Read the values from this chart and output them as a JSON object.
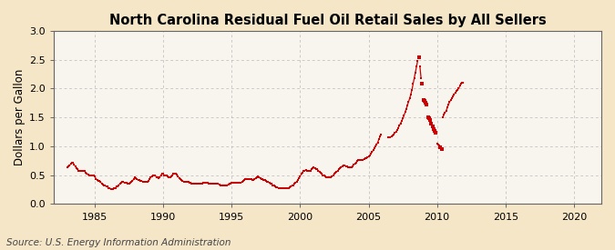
{
  "title": "North Carolina Residual Fuel Oil Retail Sales by All Sellers",
  "ylabel": "Dollars per Gallon",
  "source": "Source: U.S. Energy Information Administration",
  "xlim": [
    1982,
    2022
  ],
  "ylim": [
    0.0,
    3.0
  ],
  "yticks": [
    0.0,
    0.5,
    1.0,
    1.5,
    2.0,
    2.5,
    3.0
  ],
  "xticks": [
    1985,
    1990,
    1995,
    2000,
    2005,
    2010,
    2015,
    2020
  ],
  "line_color": "#cc0000",
  "background_color": "#f5e6c8",
  "plot_bg_color": "#f8f4ee",
  "grid_color": "#aaaaaa",
  "title_fontsize": 10.5,
  "label_fontsize": 8.5,
  "tick_fontsize": 8,
  "source_fontsize": 7.5,
  "segments": [
    [
      [
        1983.0,
        0.63
      ],
      [
        1983.083,
        0.65
      ],
      [
        1983.167,
        0.67
      ],
      [
        1983.25,
        0.7
      ],
      [
        1983.333,
        0.72
      ],
      [
        1983.417,
        0.71
      ],
      [
        1983.5,
        0.68
      ],
      [
        1983.583,
        0.65
      ],
      [
        1983.667,
        0.62
      ],
      [
        1983.75,
        0.6
      ],
      [
        1983.833,
        0.58
      ],
      [
        1983.917,
        0.57
      ],
      [
        1984.0,
        0.57
      ],
      [
        1984.083,
        0.57
      ],
      [
        1984.167,
        0.57
      ],
      [
        1984.25,
        0.57
      ],
      [
        1984.333,
        0.55
      ],
      [
        1984.417,
        0.53
      ],
      [
        1984.5,
        0.51
      ],
      [
        1984.583,
        0.5
      ],
      [
        1984.667,
        0.5
      ],
      [
        1984.75,
        0.5
      ],
      [
        1984.833,
        0.5
      ],
      [
        1984.917,
        0.5
      ],
      [
        1985.0,
        0.48
      ],
      [
        1985.083,
        0.44
      ],
      [
        1985.167,
        0.42
      ],
      [
        1985.25,
        0.4
      ],
      [
        1985.333,
        0.4
      ],
      [
        1985.417,
        0.38
      ],
      [
        1985.5,
        0.36
      ],
      [
        1985.583,
        0.34
      ],
      [
        1985.667,
        0.33
      ],
      [
        1985.75,
        0.32
      ],
      [
        1985.833,
        0.31
      ],
      [
        1985.917,
        0.3
      ],
      [
        1986.0,
        0.28
      ],
      [
        1986.083,
        0.27
      ],
      [
        1986.167,
        0.26
      ],
      [
        1986.25,
        0.26
      ],
      [
        1986.333,
        0.26
      ],
      [
        1986.417,
        0.27
      ],
      [
        1986.5,
        0.28
      ],
      [
        1986.583,
        0.3
      ],
      [
        1986.667,
        0.31
      ],
      [
        1986.75,
        0.33
      ],
      [
        1986.833,
        0.35
      ],
      [
        1986.917,
        0.37
      ],
      [
        1987.0,
        0.38
      ],
      [
        1987.083,
        0.38
      ],
      [
        1987.167,
        0.37
      ],
      [
        1987.25,
        0.37
      ],
      [
        1987.333,
        0.37
      ],
      [
        1987.417,
        0.36
      ],
      [
        1987.5,
        0.36
      ],
      [
        1987.583,
        0.37
      ],
      [
        1987.667,
        0.38
      ],
      [
        1987.75,
        0.4
      ],
      [
        1987.833,
        0.43
      ],
      [
        1987.917,
        0.46
      ],
      [
        1988.0,
        0.45
      ],
      [
        1988.083,
        0.43
      ],
      [
        1988.167,
        0.42
      ],
      [
        1988.25,
        0.41
      ],
      [
        1988.333,
        0.4
      ],
      [
        1988.417,
        0.4
      ],
      [
        1988.5,
        0.39
      ],
      [
        1988.583,
        0.39
      ],
      [
        1988.667,
        0.38
      ],
      [
        1988.75,
        0.38
      ],
      [
        1988.833,
        0.38
      ],
      [
        1988.917,
        0.4
      ],
      [
        1989.0,
        0.43
      ],
      [
        1989.083,
        0.46
      ],
      [
        1989.167,
        0.48
      ],
      [
        1989.25,
        0.5
      ],
      [
        1989.333,
        0.5
      ],
      [
        1989.417,
        0.49
      ],
      [
        1989.5,
        0.47
      ],
      [
        1989.583,
        0.46
      ],
      [
        1989.667,
        0.45
      ],
      [
        1989.75,
        0.47
      ],
      [
        1989.833,
        0.5
      ],
      [
        1989.917,
        0.53
      ],
      [
        1990.0,
        0.52
      ],
      [
        1990.083,
        0.5
      ],
      [
        1990.167,
        0.49
      ],
      [
        1990.25,
        0.49
      ],
      [
        1990.333,
        0.48
      ],
      [
        1990.417,
        0.47
      ],
      [
        1990.5,
        0.47
      ],
      [
        1990.583,
        0.48
      ],
      [
        1990.667,
        0.5
      ],
      [
        1990.75,
        0.52
      ],
      [
        1990.833,
        0.53
      ],
      [
        1990.917,
        0.53
      ],
      [
        1991.0,
        0.51
      ],
      [
        1991.083,
        0.48
      ],
      [
        1991.167,
        0.45
      ],
      [
        1991.25,
        0.43
      ],
      [
        1991.333,
        0.42
      ],
      [
        1991.417,
        0.4
      ],
      [
        1991.5,
        0.39
      ],
      [
        1991.583,
        0.38
      ],
      [
        1991.667,
        0.38
      ],
      [
        1991.75,
        0.38
      ],
      [
        1991.833,
        0.38
      ],
      [
        1991.917,
        0.37
      ],
      [
        1992.0,
        0.37
      ],
      [
        1992.083,
        0.36
      ],
      [
        1992.167,
        0.36
      ],
      [
        1992.25,
        0.36
      ],
      [
        1992.333,
        0.36
      ],
      [
        1992.417,
        0.36
      ],
      [
        1992.5,
        0.36
      ],
      [
        1992.583,
        0.36
      ],
      [
        1992.667,
        0.36
      ],
      [
        1992.75,
        0.36
      ],
      [
        1992.833,
        0.36
      ],
      [
        1992.917,
        0.37
      ],
      [
        1993.0,
        0.37
      ],
      [
        1993.083,
        0.37
      ],
      [
        1993.167,
        0.37
      ],
      [
        1993.25,
        0.37
      ],
      [
        1993.333,
        0.36
      ],
      [
        1993.417,
        0.35
      ],
      [
        1993.5,
        0.35
      ],
      [
        1993.583,
        0.35
      ],
      [
        1993.667,
        0.35
      ],
      [
        1993.75,
        0.35
      ],
      [
        1993.833,
        0.35
      ],
      [
        1993.917,
        0.35
      ],
      [
        1994.0,
        0.35
      ],
      [
        1994.083,
        0.34
      ],
      [
        1994.167,
        0.33
      ],
      [
        1994.25,
        0.33
      ],
      [
        1994.333,
        0.33
      ],
      [
        1994.417,
        0.33
      ],
      [
        1994.5,
        0.33
      ],
      [
        1994.583,
        0.33
      ],
      [
        1994.667,
        0.33
      ],
      [
        1994.75,
        0.34
      ],
      [
        1994.833,
        0.35
      ],
      [
        1994.917,
        0.36
      ],
      [
        1995.0,
        0.37
      ],
      [
        1995.083,
        0.37
      ],
      [
        1995.167,
        0.37
      ],
      [
        1995.25,
        0.37
      ],
      [
        1995.333,
        0.37
      ],
      [
        1995.417,
        0.37
      ],
      [
        1995.5,
        0.37
      ],
      [
        1995.583,
        0.37
      ],
      [
        1995.667,
        0.37
      ],
      [
        1995.75,
        0.38
      ],
      [
        1995.833,
        0.4
      ],
      [
        1995.917,
        0.42
      ],
      [
        1996.0,
        0.44
      ],
      [
        1996.083,
        0.44
      ],
      [
        1996.167,
        0.43
      ],
      [
        1996.25,
        0.43
      ],
      [
        1996.333,
        0.43
      ],
      [
        1996.417,
        0.43
      ],
      [
        1996.5,
        0.42
      ],
      [
        1996.583,
        0.42
      ],
      [
        1996.667,
        0.43
      ],
      [
        1996.75,
        0.45
      ],
      [
        1996.833,
        0.47
      ],
      [
        1996.917,
        0.48
      ],
      [
        1997.0,
        0.47
      ],
      [
        1997.083,
        0.45
      ],
      [
        1997.167,
        0.44
      ],
      [
        1997.25,
        0.43
      ],
      [
        1997.333,
        0.42
      ],
      [
        1997.417,
        0.41
      ],
      [
        1997.5,
        0.4
      ],
      [
        1997.583,
        0.39
      ],
      [
        1997.667,
        0.38
      ],
      [
        1997.75,
        0.37
      ],
      [
        1997.833,
        0.36
      ],
      [
        1997.917,
        0.35
      ],
      [
        1998.0,
        0.33
      ],
      [
        1998.083,
        0.32
      ],
      [
        1998.167,
        0.3
      ],
      [
        1998.25,
        0.29
      ],
      [
        1998.333,
        0.29
      ],
      [
        1998.417,
        0.28
      ],
      [
        1998.5,
        0.28
      ],
      [
        1998.583,
        0.28
      ],
      [
        1998.667,
        0.28
      ],
      [
        1998.75,
        0.28
      ],
      [
        1998.833,
        0.28
      ],
      [
        1998.917,
        0.28
      ],
      [
        1999.0,
        0.28
      ],
      [
        1999.083,
        0.28
      ],
      [
        1999.167,
        0.28
      ],
      [
        1999.25,
        0.29
      ],
      [
        1999.333,
        0.3
      ],
      [
        1999.417,
        0.32
      ],
      [
        1999.5,
        0.33
      ],
      [
        1999.583,
        0.35
      ],
      [
        1999.667,
        0.37
      ],
      [
        1999.75,
        0.39
      ],
      [
        1999.833,
        0.42
      ],
      [
        1999.917,
        0.45
      ],
      [
        2000.0,
        0.48
      ],
      [
        2000.083,
        0.52
      ],
      [
        2000.167,
        0.55
      ],
      [
        2000.25,
        0.57
      ],
      [
        2000.333,
        0.58
      ],
      [
        2000.417,
        0.59
      ],
      [
        2000.5,
        0.58
      ],
      [
        2000.583,
        0.57
      ],
      [
        2000.667,
        0.57
      ],
      [
        2000.75,
        0.58
      ],
      [
        2000.833,
        0.6
      ],
      [
        2000.917,
        0.62
      ],
      [
        2001.0,
        0.63
      ],
      [
        2001.083,
        0.62
      ],
      [
        2001.167,
        0.61
      ],
      [
        2001.25,
        0.6
      ],
      [
        2001.333,
        0.58
      ],
      [
        2001.417,
        0.56
      ],
      [
        2001.5,
        0.54
      ],
      [
        2001.583,
        0.52
      ],
      [
        2001.667,
        0.5
      ],
      [
        2001.75,
        0.49
      ],
      [
        2001.833,
        0.48
      ],
      [
        2001.917,
        0.47
      ],
      [
        2002.0,
        0.46
      ],
      [
        2002.083,
        0.46
      ],
      [
        2002.167,
        0.46
      ],
      [
        2002.25,
        0.47
      ],
      [
        2002.333,
        0.48
      ],
      [
        2002.417,
        0.5
      ],
      [
        2002.5,
        0.52
      ],
      [
        2002.583,
        0.54
      ],
      [
        2002.667,
        0.56
      ],
      [
        2002.75,
        0.58
      ],
      [
        2002.833,
        0.6
      ],
      [
        2002.917,
        0.62
      ],
      [
        2003.0,
        0.64
      ],
      [
        2003.083,
        0.66
      ],
      [
        2003.167,
        0.67
      ],
      [
        2003.25,
        0.67
      ],
      [
        2003.333,
        0.66
      ],
      [
        2003.417,
        0.65
      ],
      [
        2003.5,
        0.64
      ],
      [
        2003.583,
        0.63
      ],
      [
        2003.667,
        0.63
      ],
      [
        2003.75,
        0.64
      ],
      [
        2003.833,
        0.66
      ],
      [
        2003.917,
        0.68
      ],
      [
        2004.0,
        0.7
      ],
      [
        2004.083,
        0.72
      ],
      [
        2004.167,
        0.74
      ],
      [
        2004.25,
        0.76
      ],
      [
        2004.333,
        0.76
      ],
      [
        2004.417,
        0.76
      ],
      [
        2004.5,
        0.76
      ],
      [
        2004.583,
        0.77
      ],
      [
        2004.667,
        0.78
      ],
      [
        2004.75,
        0.79
      ],
      [
        2004.833,
        0.8
      ],
      [
        2004.917,
        0.81
      ],
      [
        2005.0,
        0.82
      ],
      [
        2005.083,
        0.84
      ],
      [
        2005.167,
        0.87
      ],
      [
        2005.25,
        0.9
      ],
      [
        2005.333,
        0.93
      ],
      [
        2005.417,
        0.97
      ],
      [
        2005.5,
        1.0
      ],
      [
        2005.583,
        1.03
      ],
      [
        2005.667,
        1.07
      ],
      [
        2005.75,
        1.12
      ],
      [
        2005.833,
        1.17
      ],
      [
        2005.917,
        1.2
      ]
    ],
    [
      [
        2006.417,
        1.15
      ],
      [
        2006.5,
        1.15
      ],
      [
        2006.583,
        1.16
      ],
      [
        2006.667,
        1.17
      ],
      [
        2006.75,
        1.19
      ],
      [
        2006.833,
        1.21
      ],
      [
        2006.917,
        1.23
      ],
      [
        2007.0,
        1.25
      ],
      [
        2007.083,
        1.28
      ],
      [
        2007.167,
        1.32
      ],
      [
        2007.25,
        1.36
      ],
      [
        2007.333,
        1.4
      ],
      [
        2007.417,
        1.44
      ],
      [
        2007.5,
        1.48
      ],
      [
        2007.583,
        1.53
      ],
      [
        2007.667,
        1.59
      ],
      [
        2007.75,
        1.65
      ],
      [
        2007.833,
        1.71
      ],
      [
        2007.917,
        1.77
      ],
      [
        2008.0,
        1.83
      ],
      [
        2008.083,
        1.9
      ],
      [
        2008.167,
        1.98
      ],
      [
        2008.25,
        2.08
      ],
      [
        2008.333,
        2.18
      ],
      [
        2008.417,
        2.28
      ],
      [
        2008.5,
        2.38
      ],
      [
        2008.583,
        2.48
      ]
    ],
    [
      [
        2008.667,
        2.55
      ]
    ],
    [
      [
        2008.75,
        2.38
      ],
      [
        2008.833,
        2.18
      ]
    ],
    [
      [
        2008.917,
        2.08
      ]
    ],
    [
      [
        2009.0,
        1.8
      ]
    ],
    [
      [
        2009.083,
        1.78
      ]
    ],
    [
      [
        2009.167,
        1.75
      ]
    ],
    [
      [
        2009.25,
        1.73
      ]
    ],
    [
      [
        2009.333,
        1.5
      ]
    ],
    [
      [
        2009.417,
        1.48
      ]
    ],
    [
      [
        2009.5,
        1.45
      ]
    ],
    [
      [
        2009.583,
        1.4
      ]
    ],
    [
      [
        2009.667,
        1.35
      ]
    ],
    [
      [
        2009.75,
        1.3
      ]
    ],
    [
      [
        2009.833,
        1.27
      ]
    ],
    [
      [
        2009.917,
        1.24
      ]
    ],
    [
      [
        2010.0,
        1.04
      ],
      [
        2010.083,
        1.03
      ],
      [
        2010.167,
        1.02
      ]
    ],
    [
      [
        2010.25,
        0.98
      ]
    ],
    [
      [
        2010.333,
        0.95
      ]
    ],
    [
      [
        2010.417,
        1.5
      ],
      [
        2010.5,
        1.55
      ],
      [
        2010.583,
        1.58
      ],
      [
        2010.667,
        1.62
      ],
      [
        2010.75,
        1.67
      ],
      [
        2010.833,
        1.72
      ],
      [
        2010.917,
        1.77
      ],
      [
        2011.0,
        1.8
      ],
      [
        2011.083,
        1.83
      ],
      [
        2011.167,
        1.86
      ],
      [
        2011.25,
        1.9
      ],
      [
        2011.333,
        1.93
      ],
      [
        2011.417,
        1.96
      ],
      [
        2011.5,
        1.98
      ],
      [
        2011.583,
        2.0
      ],
      [
        2011.667,
        2.05
      ],
      [
        2011.75,
        2.08
      ],
      [
        2011.833,
        2.1
      ],
      [
        2011.917,
        2.1
      ]
    ]
  ]
}
